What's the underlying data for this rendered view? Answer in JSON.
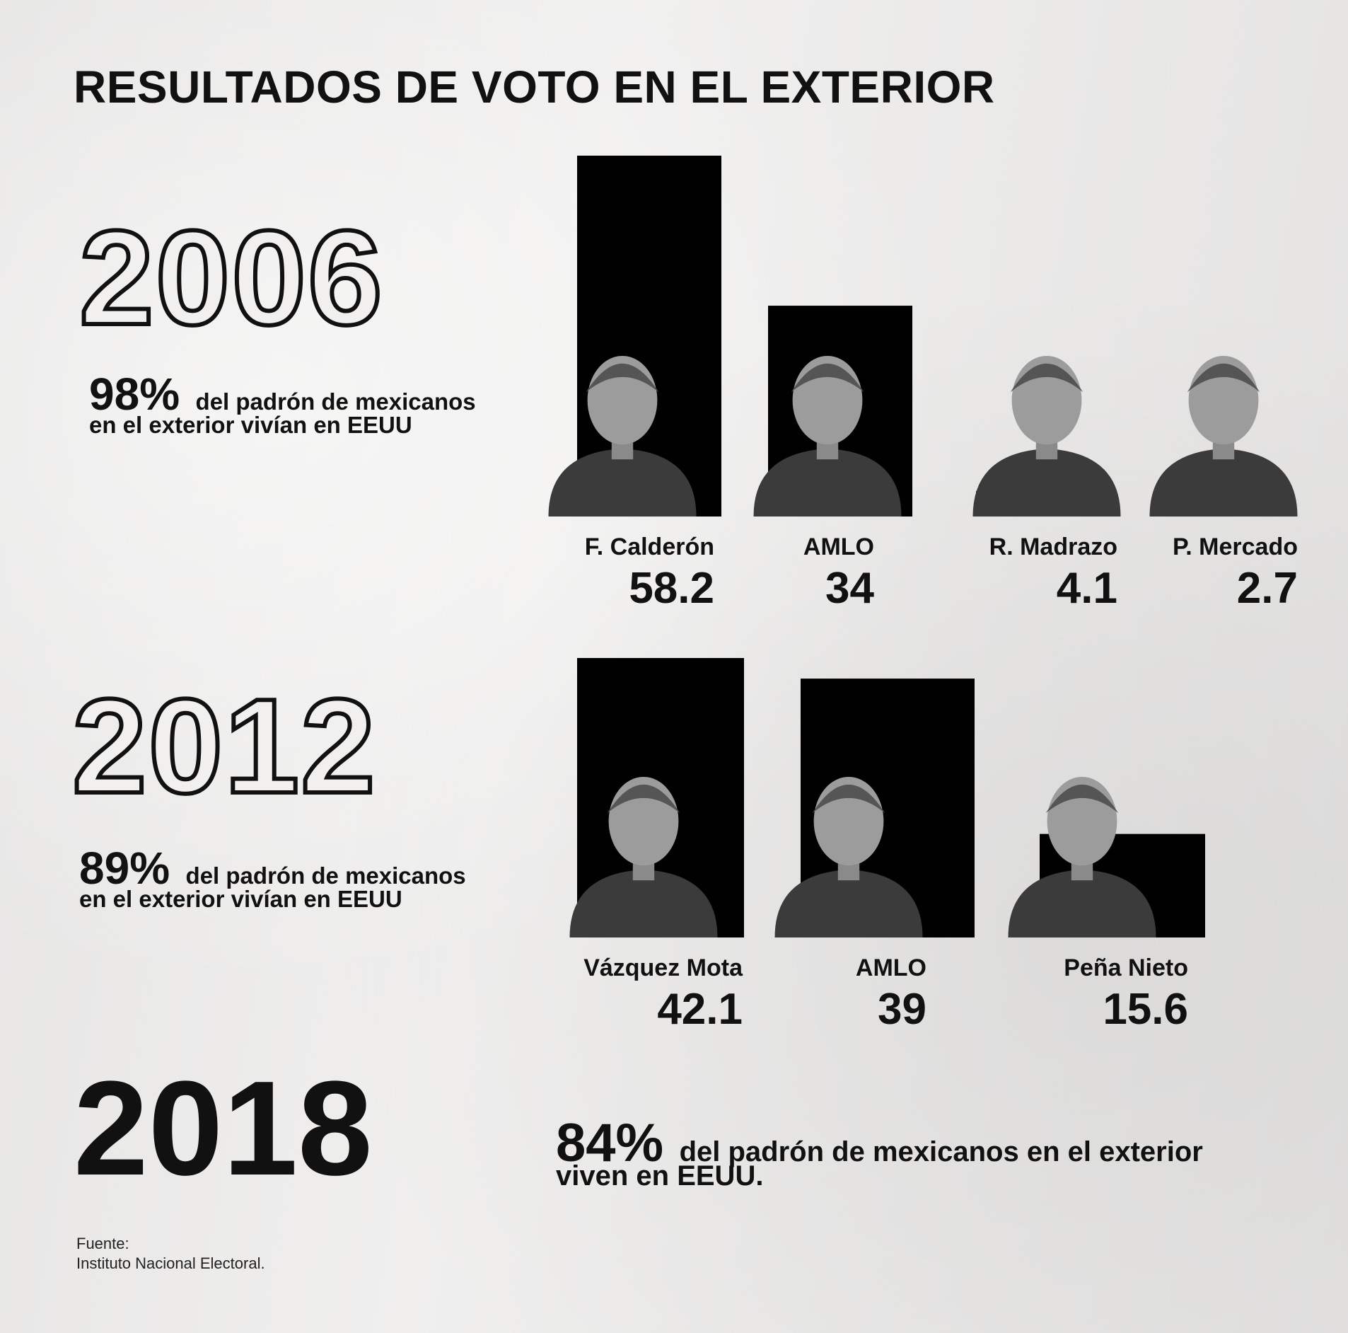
{
  "title": "RESULTADOS DE VOTO EN EL EXTERIOR",
  "sections": [
    {
      "year": "2006",
      "pct": "98%",
      "line1": "del padrón de mexicanos",
      "line2": "en el exterior vivían en EEUU"
    },
    {
      "year": "2012",
      "pct": "89%",
      "line1": "del padrón de mexicanos",
      "line2": "en el exterior vivían en EEUU"
    },
    {
      "year": "2018",
      "pct": "84%",
      "line1": "del padrón de mexicanos en el exterior",
      "line2": "viven en EEUU."
    }
  ],
  "source": {
    "label": "Fuente:",
    "name": "Instituto Nacional Electoral."
  },
  "chart_data": [
    {
      "type": "bar",
      "title": "2006",
      "categories": [
        "F. Calderón",
        "AMLO",
        "R. Madrazo",
        "P. Mercado"
      ],
      "values": [
        58.2,
        34,
        4.1,
        2.7
      ],
      "value_labels": [
        "58.2",
        "34",
        "4.1",
        "2.7"
      ]
    },
    {
      "type": "bar",
      "title": "2012",
      "categories": [
        "Vázquez Mota",
        "AMLO",
        "Peña Nieto"
      ],
      "values": [
        42.1,
        39,
        15.6
      ],
      "value_labels": [
        "42.1",
        "39",
        "15.6"
      ]
    }
  ],
  "colors": {
    "bar": "#000000",
    "photo": "#3a3a3a",
    "text": "#111111",
    "background": "#ecebea"
  }
}
